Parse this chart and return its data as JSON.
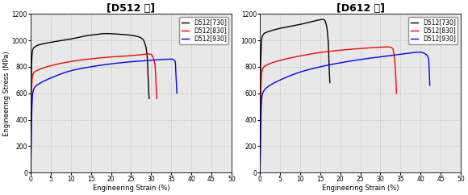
{
  "title_left": "[D512 강]",
  "title_right": "[D612 강]",
  "xlabel": "Engineering Strain (%)",
  "ylabel": "Engineering Stress (MPa)",
  "xlim": [
    0,
    50
  ],
  "ylim": [
    0,
    1200
  ],
  "xticks": [
    0,
    5,
    10,
    15,
    20,
    25,
    30,
    35,
    40,
    45,
    50
  ],
  "yticks": [
    0,
    200,
    400,
    600,
    800,
    1000,
    1200
  ],
  "legend_labels": [
    "D512[730]",
    "D512[830]",
    "D512[930]"
  ],
  "colors": [
    "black",
    "red",
    "blue"
  ],
  "bg_color": "#e8e8e8",
  "D512_730_x": [
    0,
    0.05,
    0.1,
    0.2,
    0.5,
    1.0,
    2.0,
    5,
    10,
    14,
    16,
    17,
    18,
    19,
    20,
    22,
    25,
    27,
    28,
    28.5,
    29,
    29.2,
    29.4,
    29.5
  ],
  "D512_730_y": [
    0,
    300,
    600,
    820,
    930,
    950,
    965,
    985,
    1010,
    1035,
    1043,
    1047,
    1050,
    1051,
    1050,
    1046,
    1038,
    1025,
    1005,
    970,
    880,
    750,
    600,
    560
  ],
  "D512_830_x": [
    0,
    0.05,
    0.1,
    0.2,
    0.5,
    1.0,
    2.0,
    5,
    10,
    15,
    20,
    25,
    28,
    29,
    30,
    30.5,
    31,
    31.2,
    31.4
  ],
  "D512_830_y": [
    0,
    200,
    420,
    620,
    740,
    762,
    778,
    808,
    840,
    860,
    874,
    884,
    893,
    897,
    893,
    870,
    800,
    660,
    560
  ],
  "D512_930_x": [
    0,
    0.05,
    0.1,
    0.2,
    0.5,
    1.0,
    2.0,
    5,
    10,
    15,
    20,
    25,
    30,
    33,
    35,
    36,
    36.2,
    36.4
  ],
  "D512_930_y": [
    0,
    80,
    200,
    400,
    600,
    645,
    670,
    715,
    770,
    800,
    822,
    838,
    849,
    856,
    858,
    840,
    720,
    600
  ],
  "D612_730_x": [
    0,
    0.05,
    0.1,
    0.2,
    0.5,
    1.0,
    2.0,
    5,
    10,
    13,
    14,
    15,
    15.5,
    16,
    16.5,
    17,
    17.2,
    17.4
  ],
  "D612_730_y": [
    0,
    350,
    650,
    860,
    1020,
    1050,
    1065,
    1090,
    1120,
    1142,
    1150,
    1155,
    1158,
    1155,
    1120,
    990,
    820,
    680
  ],
  "D612_830_x": [
    0,
    0.05,
    0.1,
    0.2,
    0.5,
    1.0,
    2.0,
    5,
    10,
    15,
    20,
    25,
    30,
    32,
    33,
    33.5,
    33.8,
    34.0
  ],
  "D612_830_y": [
    0,
    200,
    400,
    600,
    770,
    800,
    818,
    848,
    882,
    908,
    925,
    938,
    948,
    950,
    940,
    870,
    740,
    600
  ],
  "D612_930_x": [
    0,
    0.05,
    0.1,
    0.2,
    0.5,
    1.0,
    2.0,
    5,
    10,
    15,
    20,
    25,
    30,
    35,
    40,
    41,
    42,
    42.3
  ],
  "D612_930_y": [
    0,
    80,
    180,
    380,
    580,
    620,
    650,
    700,
    760,
    800,
    830,
    855,
    875,
    895,
    910,
    900,
    860,
    660
  ]
}
